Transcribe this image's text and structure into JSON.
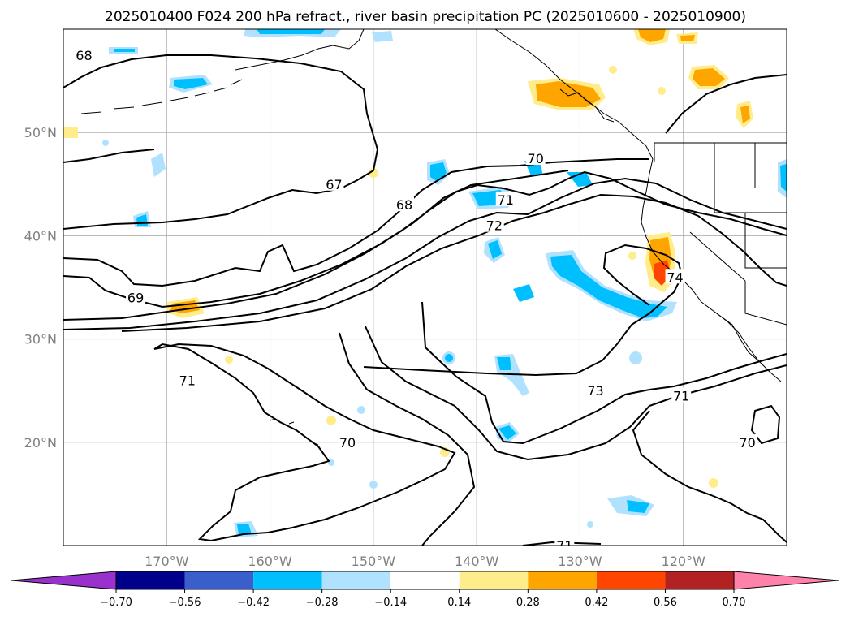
{
  "chart_data": {
    "type": "map",
    "title": "2025010400 F024 200 hPa refract., river basin precipitation PC (2025010600 - 2025010900)",
    "lon_range": [
      -180,
      -110
    ],
    "lat_range": [
      10,
      60
    ],
    "grid": true,
    "lat_ticks": [
      {
        "value": 50,
        "label": "50°N"
      },
      {
        "value": 40,
        "label": "40°N"
      },
      {
        "value": 30,
        "label": "30°N"
      },
      {
        "value": 20,
        "label": "20°N"
      }
    ],
    "lon_ticks": [
      {
        "value": -170,
        "label": "170°W"
      },
      {
        "value": -160,
        "label": "160°W"
      },
      {
        "value": -150,
        "label": "150°W"
      },
      {
        "value": -140,
        "label": "140°W"
      },
      {
        "value": -130,
        "label": "130°W"
      },
      {
        "value": -120,
        "label": "120°W"
      }
    ],
    "colorbar": {
      "levels": [
        -0.7,
        -0.56,
        -0.42,
        -0.28,
        -0.14,
        0.14,
        0.28,
        0.42,
        0.56,
        0.7
      ],
      "tick_labels": [
        "−0.70",
        "−0.56",
        "−0.42",
        "−0.28",
        "−0.14",
        "0.14",
        "0.28",
        "0.42",
        "0.56",
        "0.70"
      ],
      "colors": [
        "#9932CC",
        "#00008B",
        "#3A5FCD",
        "#00BFFF",
        "#B0E2FF",
        "#FFFFFF",
        "#FFEC8B",
        "#FFA500",
        "#FF4500",
        "#B22222",
        "#FF82AB"
      ],
      "extend": "both"
    },
    "contour_labels": [
      {
        "text": "68",
        "lon": -178.0,
        "lat": 57.5
      },
      {
        "text": "67",
        "lon": -153.8,
        "lat": 45.0
      },
      {
        "text": "68",
        "lon": -147.0,
        "lat": 43.0
      },
      {
        "text": "69",
        "lon": -173.0,
        "lat": 34.0
      },
      {
        "text": "70",
        "lon": -134.3,
        "lat": 47.5
      },
      {
        "text": "71",
        "lon": -137.2,
        "lat": 43.5
      },
      {
        "text": "72",
        "lon": -138.3,
        "lat": 41.0
      },
      {
        "text": "74",
        "lon": -120.8,
        "lat": 36.0
      },
      {
        "text": "71",
        "lon": -168.0,
        "lat": 26.0
      },
      {
        "text": "70",
        "lon": -152.5,
        "lat": 20.0
      },
      {
        "text": "73",
        "lon": -128.5,
        "lat": 25.0
      },
      {
        "text": "71",
        "lon": -120.2,
        "lat": 24.5
      },
      {
        "text": "70",
        "lon": -113.8,
        "lat": 20.0
      },
      {
        "text": "71",
        "lon": -131.5,
        "lat": 10.0
      }
    ]
  }
}
